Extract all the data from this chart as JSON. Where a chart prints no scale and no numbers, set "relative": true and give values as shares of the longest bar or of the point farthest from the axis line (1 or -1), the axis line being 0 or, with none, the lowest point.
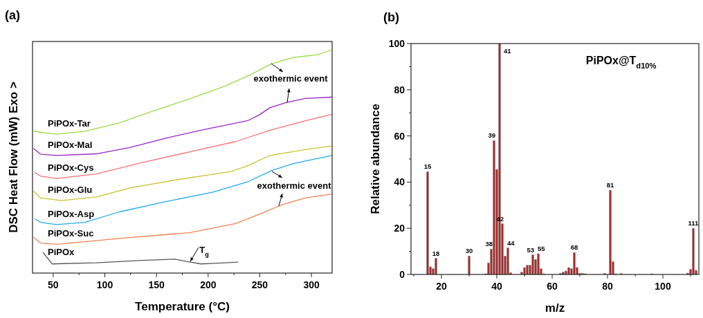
{
  "chart_data": [
    {
      "type": "line",
      "title": "(a)",
      "xlabel": "Temperature (°C)",
      "ylabel": "DSC Heat Flow (mW) Exo >",
      "relative": true,
      "tick_labels": "x",
      "legend": false,
      "grid": false,
      "xlim": [
        30,
        320
      ],
      "xticks": [
        50,
        {
          "value": 75,
          "label": null
        },
        100,
        {
          "value": 125,
          "label": null
        },
        150,
        {
          "value": 175,
          "label": null
        },
        200,
        {
          "value": 225,
          "label": null
        },
        250,
        {
          "value": 275,
          "label": null
        },
        300
      ],
      "series": [
        {
          "name": "PiPOx-Tar",
          "color": "#99dd44",
          "x": [
            31,
            38,
            53.6,
            80.5,
            114,
            148,
            182,
            216,
            241,
            261,
            283,
            306,
            320
          ],
          "values": [
            0.637,
            0.63,
            0.622,
            0.635,
            0.672,
            0.728,
            0.78,
            0.837,
            0.888,
            0.937,
            0.966,
            0.978,
            1.0
          ]
        },
        {
          "name": "PiPOx-Mal",
          "color": "#9b22c8",
          "x": [
            31,
            38,
            53.6,
            91.8,
            125,
            159,
            193,
            238,
            249,
            260,
            276,
            294,
            320
          ],
          "values": [
            0.558,
            0.532,
            0.527,
            0.534,
            0.563,
            0.604,
            0.64,
            0.682,
            0.707,
            0.741,
            0.764,
            0.782,
            0.788
          ]
        },
        {
          "name": "PiPOx-Cys",
          "color": "#f87171",
          "x": [
            32,
            38,
            53.6,
            91.8,
            136.7,
            181.6,
            226.5,
            260,
            294,
            320
          ],
          "values": [
            0.451,
            0.434,
            0.424,
            0.444,
            0.496,
            0.542,
            0.589,
            0.64,
            0.682,
            0.711
          ]
        },
        {
          "name": "PiPOx-Glu",
          "color": "#c8c030",
          "x": [
            31,
            38,
            58,
            91.8,
            125,
            170,
            222,
            238,
            260,
            294,
            320
          ],
          "values": [
            0.367,
            0.336,
            0.325,
            0.341,
            0.382,
            0.418,
            0.455,
            0.48,
            0.527,
            0.553,
            0.569
          ]
        },
        {
          "name": "PiPOx-Asp",
          "color": "#22aaee",
          "x": [
            32,
            38,
            53.6,
            80.5,
            114,
            159,
            204,
            238,
            262,
            283,
            320
          ],
          "values": [
            0.243,
            0.227,
            0.217,
            0.227,
            0.274,
            0.32,
            0.362,
            0.408,
            0.46,
            0.491,
            0.527
          ]
        },
        {
          "name": "PiPOx-Suc",
          "color": "#f4804a",
          "x": [
            31,
            38,
            53.6,
            114,
            182,
            226.5,
            249,
            271,
            294,
            320
          ],
          "values": [
            0.16,
            0.134,
            0.129,
            0.155,
            0.181,
            0.222,
            0.263,
            0.305,
            0.336,
            0.354
          ]
        },
        {
          "name": "PiPOx",
          "color": "#555555",
          "x": [
            40,
            49,
            91.8,
            136.7,
            168,
            179,
            193,
            204,
            229
          ],
          "values": [
            0.093,
            0.041,
            0.046,
            0.057,
            0.062,
            0.052,
            0.041,
            0.043,
            0.049
          ]
        }
      ],
      "annotations": [
        "exothermic event",
        "exothermic event",
        "T$_{g}$"
      ]
    },
    {
      "type": "bar",
      "title": "(b)",
      "xlabel": "m/z",
      "ylabel": "Relative abundance",
      "color": "#a52a2a",
      "grid": false,
      "xlim": [
        9,
        113
      ],
      "ylim": [
        0,
        100
      ],
      "xticks": [
        {
          "value": 10,
          "label": null
        },
        20,
        {
          "value": 30,
          "label": null
        },
        40,
        {
          "value": 50,
          "label": null
        },
        60,
        {
          "value": 70,
          "label": null
        },
        80,
        {
          "value": 90,
          "label": null
        },
        100,
        {
          "value": 110,
          "label": null
        }
      ],
      "yticks": [
        0,
        {
          "value": 10,
          "label": null
        },
        20,
        {
          "value": 30,
          "label": null
        },
        40,
        {
          "value": 50,
          "label": null
        },
        60,
        {
          "value": 70,
          "label": null
        },
        80,
        {
          "value": 90,
          "label": null
        },
        100
      ],
      "x": [
        15,
        16,
        17,
        18,
        30,
        36,
        37,
        38,
        39,
        40,
        41,
        42,
        43,
        44,
        45,
        49,
        50,
        51,
        52,
        53,
        54,
        55,
        56,
        57,
        63,
        64,
        65,
        66,
        67,
        68,
        69,
        70,
        71,
        72,
        79,
        81,
        82,
        83,
        85,
        96,
        109,
        110,
        111,
        112
      ],
      "values": [
        44.5,
        3.3,
        2.5,
        7,
        8,
        0.3,
        5,
        11,
        58,
        45.5,
        100,
        22,
        8,
        11.5,
        0.8,
        1,
        3,
        4,
        4,
        8.5,
        6.5,
        9,
        2.5,
        0.3,
        0.5,
        1,
        1.5,
        3,
        2.5,
        9.5,
        3,
        0.5,
        0.5,
        0.3,
        0.5,
        36.5,
        5.5,
        0.3,
        0.4,
        0.3,
        0.6,
        2.2,
        20,
        1.8
      ],
      "annotations": [
        "PiPOx@T$_{d10%}$",
        {
          "text": "15",
          "x": 15,
          "y": 44.5
        },
        {
          "text": "18",
          "x": 18,
          "y": 7
        },
        {
          "text": "30",
          "x": 30,
          "y": 8
        },
        {
          "text": "38",
          "x": 38,
          "y": 11
        },
        {
          "text": "39",
          "x": 39,
          "y": 58
        },
        {
          "text": "41",
          "x": 41,
          "y": 100
        },
        {
          "text": "42",
          "x": 42,
          "y": 22
        },
        {
          "text": "44",
          "x": 44,
          "y": 11.5
        },
        {
          "text": "53",
          "x": 53,
          "y": 8.5
        },
        {
          "text": "55",
          "x": 55,
          "y": 9
        },
        {
          "text": "68",
          "x": 68,
          "y": 9.5
        },
        {
          "text": "81",
          "x": 81,
          "y": 36.5
        },
        {
          "text": "111",
          "x": 111,
          "y": 20
        }
      ]
    }
  ]
}
